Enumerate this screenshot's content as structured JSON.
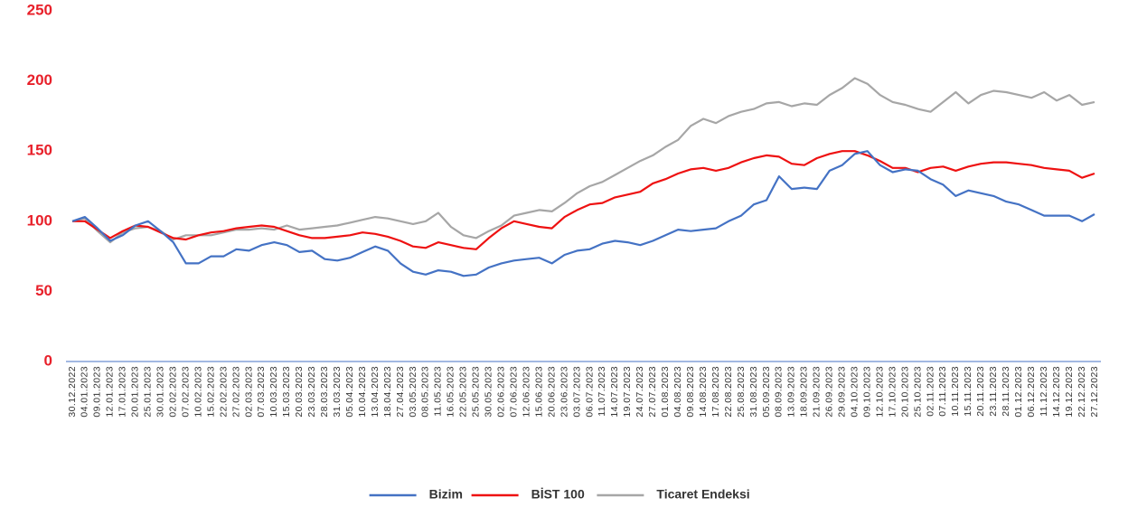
{
  "chart_data": {
    "type": "line",
    "categories": [
      "30.12.2022",
      "04.01.2023",
      "09.01.2023",
      "12.01.2023",
      "17.01.2023",
      "20.01.2023",
      "25.01.2023",
      "30.01.2023",
      "02.02.2023",
      "07.02.2023",
      "10.02.2023",
      "15.02.2023",
      "22.02.2023",
      "27.02.2023",
      "02.03.2023",
      "07.03.2023",
      "10.03.2023",
      "15.03.2023",
      "20.03.2023",
      "23.03.2023",
      "28.03.2023",
      "31.03.2023",
      "05.04.2023",
      "10.04.2023",
      "13.04.2023",
      "18.04.2023",
      "27.04.2023",
      "03.05.2023",
      "08.05.2023",
      "11.05.2023",
      "16.05.2023",
      "22.05.2023",
      "25.05.2023",
      "30.05.2023",
      "02.06.2023",
      "07.06.2023",
      "12.06.2023",
      "15.06.2023",
      "20.06.2023",
      "23.06.2023",
      "03.07.2023",
      "06.07.2023",
      "11.07.2023",
      "14.07.2023",
      "19.07.2023",
      "24.07.2023",
      "27.07.2023",
      "01.08.2023",
      "04.08.2023",
      "09.08.2023",
      "14.08.2023",
      "17.08.2023",
      "22.08.2023",
      "25.08.2023",
      "31.08.2023",
      "05.09.2023",
      "08.09.2023",
      "13.09.2023",
      "18.09.2023",
      "21.09.2023",
      "26.09.2023",
      "29.09.2023",
      "04.10.2023",
      "09.10.2023",
      "12.10.2023",
      "17.10.2023",
      "20.10.2023",
      "25.10.2023",
      "02.11.2023",
      "07.11.2023",
      "10.11.2023",
      "15.11.2023",
      "20.11.2023",
      "23.11.2023",
      "28.11.2023",
      "01.12.2023",
      "06.12.2023",
      "11.12.2023",
      "14.12.2023",
      "19.12.2023",
      "22.12.2023",
      "27.12.2023"
    ],
    "series": [
      {
        "name": "Bizim",
        "color": "#4472c4",
        "values": [
          100,
          103,
          95,
          86,
          90,
          97,
          100,
          93,
          85,
          70,
          70,
          75,
          75,
          80,
          79,
          83,
          85,
          83,
          78,
          79,
          73,
          72,
          74,
          78,
          82,
          79,
          70,
          64,
          62,
          65,
          64,
          61,
          62,
          67,
          70,
          72,
          73,
          74,
          70,
          76,
          79,
          80,
          84,
          86,
          85,
          83,
          86,
          90,
          94,
          93,
          94,
          95,
          100,
          104,
          112,
          115,
          132,
          123,
          124,
          123,
          136,
          140,
          148,
          150,
          140,
          135,
          137,
          136,
          130,
          126,
          118,
          122,
          120,
          118,
          114,
          112,
          108,
          104,
          104,
          104,
          100,
          105
        ]
      },
      {
        "name": "BİST 100",
        "color": "#ee1111",
        "values": [
          100,
          100,
          94,
          88,
          93,
          97,
          96,
          92,
          88,
          87,
          90,
          92,
          93,
          95,
          96,
          97,
          96,
          93,
          90,
          88,
          88,
          89,
          90,
          92,
          91,
          89,
          86,
          82,
          81,
          85,
          83,
          81,
          80,
          88,
          95,
          100,
          98,
          96,
          95,
          103,
          108,
          112,
          113,
          117,
          119,
          121,
          127,
          130,
          134,
          137,
          138,
          136,
          138,
          142,
          145,
          147,
          146,
          141,
          140,
          145,
          148,
          150,
          150,
          147,
          143,
          138,
          138,
          135,
          138,
          139,
          136,
          139,
          141,
          142,
          142,
          141,
          140,
          138,
          137,
          136,
          131,
          134
        ]
      },
      {
        "name": "Ticaret Endeksi",
        "color": "#a6a6a6",
        "values": [
          100,
          102,
          93,
          85,
          92,
          95,
          96,
          93,
          87,
          90,
          90,
          90,
          92,
          94,
          94,
          95,
          94,
          97,
          94,
          95,
          96,
          97,
          99,
          101,
          103,
          102,
          100,
          98,
          100,
          106,
          96,
          90,
          88,
          93,
          97,
          104,
          106,
          108,
          107,
          113,
          120,
          125,
          128,
          133,
          138,
          143,
          147,
          153,
          158,
          168,
          173,
          170,
          175,
          178,
          180,
          184,
          185,
          182,
          184,
          183,
          190,
          195,
          202,
          198,
          190,
          185,
          183,
          180,
          178,
          185,
          192,
          184,
          190,
          193,
          192,
          190,
          188,
          192,
          186,
          190,
          183,
          185
        ]
      }
    ],
    "ylim": [
      0,
      250
    ],
    "yticks": [
      0,
      50,
      100,
      150,
      200,
      250
    ],
    "legend": "bottom"
  }
}
